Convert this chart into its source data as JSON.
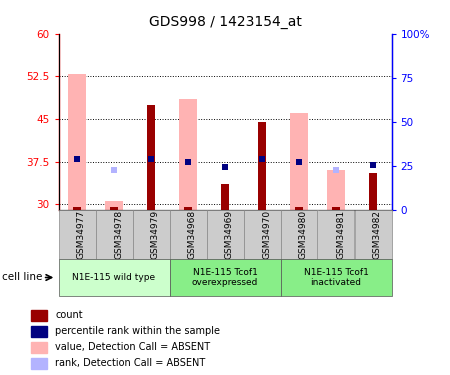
{
  "title": "GDS998 / 1423154_at",
  "samples": [
    "GSM34977",
    "GSM34978",
    "GSM34979",
    "GSM34968",
    "GSM34969",
    "GSM34970",
    "GSM34980",
    "GSM34981",
    "GSM34982"
  ],
  "count_values": [
    29.5,
    29.5,
    47.5,
    29.5,
    33.5,
    44.5,
    29.5,
    29.5,
    35.5
  ],
  "absent_value_values": [
    53.0,
    30.5,
    null,
    48.5,
    null,
    null,
    46.0,
    36.0,
    null
  ],
  "percentile_rank_left": [
    38.0,
    null,
    38.0,
    37.5,
    36.5,
    38.0,
    37.5,
    null,
    37.0
  ],
  "absent_rank_left": [
    null,
    36.0,
    null,
    null,
    null,
    null,
    null,
    36.0,
    null
  ],
  "ylim_left": [
    29,
    60
  ],
  "ylim_right": [
    0,
    100
  ],
  "yticks_left": [
    30,
    37.5,
    45,
    52.5,
    60
  ],
  "yticks_right": [
    0,
    25,
    50,
    75,
    100
  ],
  "ytick_labels_left": [
    "30",
    "37.5",
    "45",
    "52.5",
    "60"
  ],
  "ytick_labels_right": [
    "0",
    "25",
    "50",
    "75",
    "100%"
  ],
  "bar_bottom": 29,
  "count_color": "#990000",
  "absent_value_color": "#ffb3b3",
  "percentile_color": "#000080",
  "absent_rank_color": "#b3b3ff",
  "group_labels": [
    "N1E-115 wild type",
    "N1E-115 Tcof1\noverexpressed",
    "N1E-115 Tcof1\ninactivated"
  ],
  "group_ranges": [
    [
      0,
      3
    ],
    [
      3,
      6
    ],
    [
      6,
      9
    ]
  ],
  "group_colors": [
    "#ccffcc",
    "#88ee88",
    "#88ee88"
  ],
  "legend_items": [
    {
      "label": "count",
      "color": "#990000"
    },
    {
      "label": "percentile rank within the sample",
      "color": "#000080"
    },
    {
      "label": "value, Detection Call = ABSENT",
      "color": "#ffb3b3"
    },
    {
      "label": "rank, Detection Call = ABSENT",
      "color": "#b3b3ff"
    }
  ],
  "sample_box_color": "#cccccc",
  "cell_line_label": "cell line"
}
